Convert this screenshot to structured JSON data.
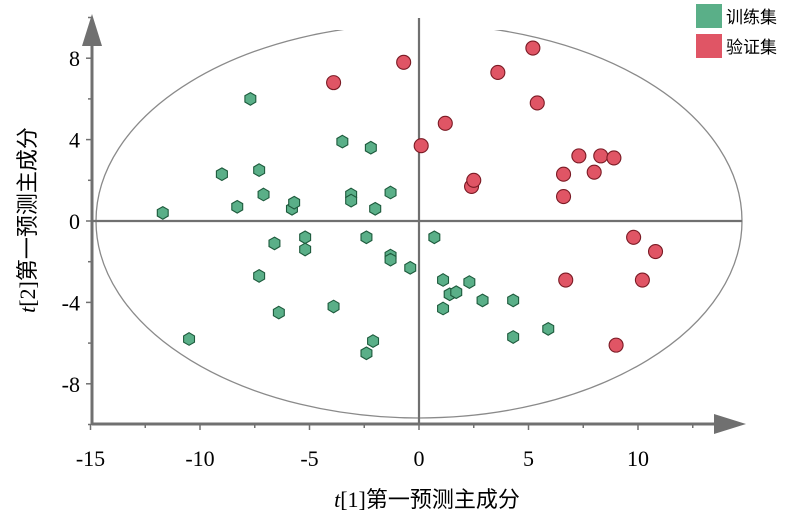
{
  "chart_data": {
    "type": "scatter",
    "xlabel": "t[1]第一预测主成分",
    "ylabel": "t[2]第一预测主成分",
    "xlabel_italic": "t",
    "xlabel_rest": "[1]第一预测主成分",
    "ylabel_italic": "t",
    "ylabel_rest": "[2]第一预测主成分",
    "xlim": [
      -15,
      15
    ],
    "ylim": [
      -10,
      10
    ],
    "xticks": [
      "-15",
      "-10",
      "-5",
      "0",
      "5",
      "10"
    ],
    "yticks": [
      "-8",
      "-4",
      "0",
      "4",
      "8"
    ],
    "legend": {
      "position": "top-right"
    },
    "series": [
      {
        "name": "训练集",
        "marker": "hexagon",
        "color": "#5aaf88",
        "stroke": "#1d5a3c",
        "points": [
          [
            -11.7,
            0.4
          ],
          [
            -10.5,
            -5.8
          ],
          [
            -9.0,
            2.3
          ],
          [
            -8.3,
            0.7
          ],
          [
            -7.7,
            6.0
          ],
          [
            -7.3,
            2.5
          ],
          [
            -7.1,
            1.3
          ],
          [
            -7.3,
            -2.7
          ],
          [
            -6.6,
            -1.1
          ],
          [
            -6.4,
            -4.5
          ],
          [
            -5.8,
            0.6
          ],
          [
            -5.7,
            0.9
          ],
          [
            -5.2,
            -0.8
          ],
          [
            -5.2,
            -1.4
          ],
          [
            -3.9,
            -4.2
          ],
          [
            -3.5,
            3.9
          ],
          [
            -3.1,
            1.3
          ],
          [
            -3.1,
            1.0
          ],
          [
            -2.4,
            -0.8
          ],
          [
            -2.2,
            3.6
          ],
          [
            -2.0,
            0.6
          ],
          [
            -2.1,
            -5.9
          ],
          [
            -2.4,
            -6.5
          ],
          [
            -1.3,
            1.4
          ],
          [
            -1.3,
            -1.7
          ],
          [
            -1.3,
            -1.9
          ],
          [
            -0.4,
            -2.3
          ],
          [
            0.7,
            -0.8
          ],
          [
            1.1,
            -2.9
          ],
          [
            1.1,
            -4.3
          ],
          [
            1.4,
            -3.6
          ],
          [
            1.7,
            -3.5
          ],
          [
            2.3,
            -3.0
          ],
          [
            2.9,
            -3.9
          ],
          [
            4.3,
            -3.9
          ],
          [
            4.3,
            -5.7
          ],
          [
            5.9,
            -5.3
          ]
        ]
      },
      {
        "name": "验证集",
        "marker": "circle",
        "color": "#e05565",
        "stroke": "#7a1a24",
        "points": [
          [
            -3.9,
            6.8
          ],
          [
            -0.7,
            7.8
          ],
          [
            0.1,
            3.7
          ],
          [
            1.2,
            4.8
          ],
          [
            2.4,
            1.7
          ],
          [
            2.5,
            2.0
          ],
          [
            3.6,
            7.3
          ],
          [
            5.2,
            8.5
          ],
          [
            5.4,
            5.8
          ],
          [
            6.6,
            2.3
          ],
          [
            6.6,
            1.2
          ],
          [
            6.7,
            -2.9
          ],
          [
            7.3,
            3.2
          ],
          [
            8.0,
            2.4
          ],
          [
            8.3,
            3.2
          ],
          [
            8.9,
            3.1
          ],
          [
            9.0,
            -6.1
          ],
          [
            9.8,
            -0.8
          ],
          [
            10.2,
            -2.9
          ],
          [
            10.8,
            -1.5
          ]
        ]
      }
    ]
  }
}
